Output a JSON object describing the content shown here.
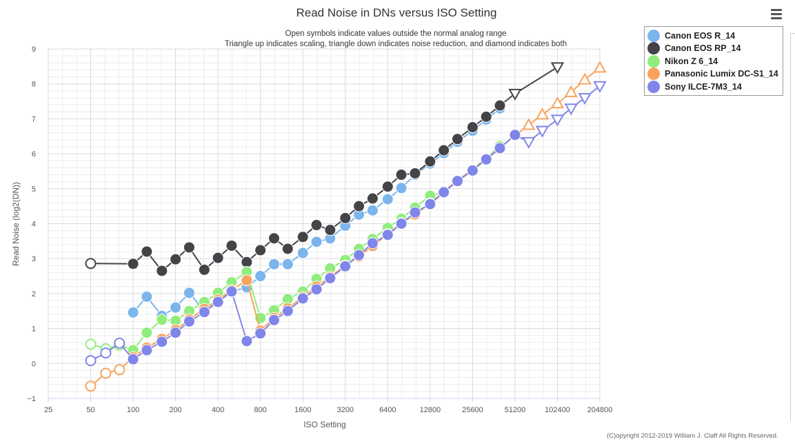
{
  "menu": {
    "icon": "hamburger-menu-icon"
  },
  "copyright": "(C)opyright 2012-2019 William J. Claff All Rights Reserved.",
  "chart_data": {
    "type": "line",
    "title": "Read Noise in DNs versus ISO Setting",
    "subtitle_lines": [
      "Open symbols indicate values outside the normal analog range",
      "Triangle up indicates scaling, triangle down indicates noise reduction, and diamond indicates both"
    ],
    "xlabel": "ISO Setting",
    "ylabel": "Read Noise (log2(DN))",
    "x_scale": "log2",
    "xlim": [
      25,
      204800
    ],
    "ylim": [
      -1,
      9
    ],
    "x_ticks": [
      25,
      50,
      100,
      200,
      400,
      800,
      1600,
      3200,
      6400,
      12800,
      25600,
      51200,
      102400,
      204800
    ],
    "y_ticks": [
      -1,
      0,
      1,
      2,
      3,
      4,
      5,
      6,
      7,
      8,
      9
    ],
    "grid": true,
    "legend_position": "top-right",
    "series": [
      {
        "name": "Canon EOS R_14",
        "color": "#7cb5ec",
        "points": [
          {
            "x": 100,
            "y": 1.46,
            "s": "circle"
          },
          {
            "x": 125,
            "y": 1.91,
            "s": "circle"
          },
          {
            "x": 160,
            "y": 1.36,
            "s": "circle"
          },
          {
            "x": 200,
            "y": 1.6,
            "s": "circle"
          },
          {
            "x": 250,
            "y": 2.02,
            "s": "circle"
          },
          {
            "x": 320,
            "y": 1.5,
            "s": "circle"
          },
          {
            "x": 400,
            "y": 1.85,
            "s": "circle"
          },
          {
            "x": 500,
            "y": 2.06,
            "s": "circle"
          },
          {
            "x": 640,
            "y": 2.18,
            "s": "circle"
          },
          {
            "x": 800,
            "y": 2.5,
            "s": "circle"
          },
          {
            "x": 1000,
            "y": 2.84,
            "s": "circle"
          },
          {
            "x": 1250,
            "y": 2.84,
            "s": "circle"
          },
          {
            "x": 1600,
            "y": 3.16,
            "s": "circle"
          },
          {
            "x": 2000,
            "y": 3.48,
            "s": "circle"
          },
          {
            "x": 2500,
            "y": 3.58,
            "s": "circle"
          },
          {
            "x": 3200,
            "y": 3.94,
            "s": "circle"
          },
          {
            "x": 4000,
            "y": 4.26,
            "s": "circle"
          },
          {
            "x": 5000,
            "y": 4.38,
            "s": "circle"
          },
          {
            "x": 6400,
            "y": 4.7,
            "s": "circle"
          },
          {
            "x": 8000,
            "y": 5.02,
            "s": "circle"
          },
          {
            "x": 10000,
            "y": 5.4,
            "s": "circle"
          },
          {
            "x": 12800,
            "y": 5.72,
            "s": "circle"
          },
          {
            "x": 16000,
            "y": 6.02,
            "s": "circle"
          },
          {
            "x": 20000,
            "y": 6.34,
            "s": "circle"
          },
          {
            "x": 25600,
            "y": 6.66,
            "s": "circle"
          },
          {
            "x": 32000,
            "y": 6.98,
            "s": "circle"
          },
          {
            "x": 40000,
            "y": 7.3,
            "s": "circle"
          }
        ]
      },
      {
        "name": "Canon EOS RP_14",
        "color": "#434348",
        "points": [
          {
            "x": 50,
            "y": 2.86,
            "s": "open-circle"
          },
          {
            "x": 100,
            "y": 2.85,
            "s": "circle"
          },
          {
            "x": 125,
            "y": 3.2,
            "s": "circle"
          },
          {
            "x": 160,
            "y": 2.65,
            "s": "circle"
          },
          {
            "x": 200,
            "y": 2.98,
            "s": "circle"
          },
          {
            "x": 250,
            "y": 3.32,
            "s": "circle"
          },
          {
            "x": 320,
            "y": 2.68,
            "s": "circle"
          },
          {
            "x": 400,
            "y": 3.02,
            "s": "circle"
          },
          {
            "x": 500,
            "y": 3.37,
            "s": "circle"
          },
          {
            "x": 640,
            "y": 2.9,
            "s": "circle"
          },
          {
            "x": 800,
            "y": 3.24,
            "s": "circle"
          },
          {
            "x": 1000,
            "y": 3.58,
            "s": "circle"
          },
          {
            "x": 1250,
            "y": 3.28,
            "s": "circle"
          },
          {
            "x": 1600,
            "y": 3.62,
            "s": "circle"
          },
          {
            "x": 2000,
            "y": 3.96,
            "s": "circle"
          },
          {
            "x": 2500,
            "y": 3.82,
            "s": "circle"
          },
          {
            "x": 3200,
            "y": 4.16,
            "s": "circle"
          },
          {
            "x": 4000,
            "y": 4.5,
            "s": "circle"
          },
          {
            "x": 5000,
            "y": 4.72,
            "s": "circle"
          },
          {
            "x": 6400,
            "y": 5.06,
            "s": "circle"
          },
          {
            "x": 8000,
            "y": 5.4,
            "s": "circle"
          },
          {
            "x": 10000,
            "y": 5.44,
            "s": "circle"
          },
          {
            "x": 12800,
            "y": 5.78,
            "s": "circle"
          },
          {
            "x": 16000,
            "y": 6.1,
            "s": "circle"
          },
          {
            "x": 20000,
            "y": 6.42,
            "s": "circle"
          },
          {
            "x": 25600,
            "y": 6.76,
            "s": "circle"
          },
          {
            "x": 32000,
            "y": 7.06,
            "s": "circle"
          },
          {
            "x": 40000,
            "y": 7.38,
            "s": "circle"
          },
          {
            "x": 51200,
            "y": 7.72,
            "s": "tri-down"
          },
          {
            "x": 102400,
            "y": 8.48,
            "s": "tri-down"
          }
        ]
      },
      {
        "name": "Nikon Z 6_14",
        "color": "#90ed7d",
        "points": [
          {
            "x": 50,
            "y": 0.55,
            "s": "open-circle"
          },
          {
            "x": 64,
            "y": 0.42,
            "s": "open-circle"
          },
          {
            "x": 80,
            "y": 0.52,
            "s": "open-circle"
          },
          {
            "x": 100,
            "y": 0.38,
            "s": "circle"
          },
          {
            "x": 125,
            "y": 0.88,
            "s": "circle"
          },
          {
            "x": 160,
            "y": 1.25,
            "s": "circle"
          },
          {
            "x": 200,
            "y": 1.22,
            "s": "circle"
          },
          {
            "x": 250,
            "y": 1.5,
            "s": "circle"
          },
          {
            "x": 320,
            "y": 1.76,
            "s": "circle"
          },
          {
            "x": 400,
            "y": 2.02,
            "s": "circle"
          },
          {
            "x": 500,
            "y": 2.32,
            "s": "circle"
          },
          {
            "x": 640,
            "y": 2.62,
            "s": "circle"
          },
          {
            "x": 800,
            "y": 1.3,
            "s": "circle"
          },
          {
            "x": 1000,
            "y": 1.52,
            "s": "circle"
          },
          {
            "x": 1250,
            "y": 1.84,
            "s": "circle"
          },
          {
            "x": 1600,
            "y": 2.06,
            "s": "circle"
          },
          {
            "x": 2000,
            "y": 2.42,
            "s": "circle"
          },
          {
            "x": 2500,
            "y": 2.72,
            "s": "circle"
          },
          {
            "x": 3200,
            "y": 2.96,
            "s": "circle"
          },
          {
            "x": 4000,
            "y": 3.28,
            "s": "circle"
          },
          {
            "x": 5000,
            "y": 3.56,
            "s": "circle"
          },
          {
            "x": 6400,
            "y": 3.88,
            "s": "circle"
          },
          {
            "x": 8000,
            "y": 4.14,
            "s": "circle"
          },
          {
            "x": 10000,
            "y": 4.46,
            "s": "circle"
          },
          {
            "x": 12800,
            "y": 4.8,
            "s": "circle"
          },
          {
            "x": 16000,
            "y": 4.9,
            "s": "circle"
          },
          {
            "x": 20000,
            "y": 5.22,
            "s": "circle"
          },
          {
            "x": 25600,
            "y": 5.56,
            "s": "circle"
          },
          {
            "x": 32000,
            "y": 5.88,
            "s": "circle"
          },
          {
            "x": 40000,
            "y": 6.22,
            "s": "circle"
          }
        ]
      },
      {
        "name": "Panasonic Lumix DC-S1_14",
        "color": "#f7a35c",
        "points": [
          {
            "x": 50,
            "y": -0.65,
            "s": "open-circle"
          },
          {
            "x": 64,
            "y": -0.28,
            "s": "open-circle"
          },
          {
            "x": 80,
            "y": -0.18,
            "s": "open-circle"
          },
          {
            "x": 100,
            "y": 0.18,
            "s": "circle"
          },
          {
            "x": 125,
            "y": 0.45,
            "s": "circle"
          },
          {
            "x": 160,
            "y": 0.7,
            "s": "circle"
          },
          {
            "x": 200,
            "y": 0.96,
            "s": "circle"
          },
          {
            "x": 250,
            "y": 1.26,
            "s": "circle"
          },
          {
            "x": 320,
            "y": 1.56,
            "s": "circle"
          },
          {
            "x": 400,
            "y": 1.82,
            "s": "circle"
          },
          {
            "x": 500,
            "y": 2.1,
            "s": "circle"
          },
          {
            "x": 640,
            "y": 2.38,
            "s": "circle"
          },
          {
            "x": 800,
            "y": 0.94,
            "s": "circle"
          },
          {
            "x": 1000,
            "y": 1.3,
            "s": "circle"
          },
          {
            "x": 1250,
            "y": 1.58,
            "s": "circle"
          },
          {
            "x": 1600,
            "y": 1.9,
            "s": "circle"
          },
          {
            "x": 2000,
            "y": 2.2,
            "s": "circle"
          },
          {
            "x": 2500,
            "y": 2.48,
            "s": "circle"
          },
          {
            "x": 3200,
            "y": 2.8,
            "s": "circle"
          },
          {
            "x": 4000,
            "y": 3.06,
            "s": "circle"
          },
          {
            "x": 5000,
            "y": 3.36,
            "s": "circle"
          },
          {
            "x": 6400,
            "y": 3.7,
            "s": "circle"
          },
          {
            "x": 8000,
            "y": 4.02,
            "s": "circle"
          },
          {
            "x": 10000,
            "y": 4.26,
            "s": "circle"
          },
          {
            "x": 12800,
            "y": 4.58,
            "s": "circle"
          },
          {
            "x": 16000,
            "y": 4.92,
            "s": "circle"
          },
          {
            "x": 20000,
            "y": 5.24,
            "s": "circle"
          },
          {
            "x": 25600,
            "y": 5.54,
            "s": "circle"
          },
          {
            "x": 32000,
            "y": 5.86,
            "s": "circle"
          },
          {
            "x": 40000,
            "y": 6.16,
            "s": "circle"
          },
          {
            "x": 51200,
            "y": 6.52,
            "s": "circle"
          },
          {
            "x": 64000,
            "y": 6.82,
            "s": "tri-up"
          },
          {
            "x": 80000,
            "y": 7.12,
            "s": "tri-up"
          },
          {
            "x": 102400,
            "y": 7.44,
            "s": "tri-up"
          },
          {
            "x": 128000,
            "y": 7.76,
            "s": "tri-up"
          },
          {
            "x": 160000,
            "y": 8.12,
            "s": "tri-up"
          },
          {
            "x": 204800,
            "y": 8.46,
            "s": "tri-up"
          }
        ]
      },
      {
        "name": "Sony ILCE-7M3_14",
        "color": "#8085e9",
        "points": [
          {
            "x": 50,
            "y": 0.08,
            "s": "open-circle"
          },
          {
            "x": 64,
            "y": 0.3,
            "s": "open-circle"
          },
          {
            "x": 80,
            "y": 0.58,
            "s": "open-circle"
          },
          {
            "x": 100,
            "y": 0.12,
            "s": "circle"
          },
          {
            "x": 125,
            "y": 0.38,
            "s": "circle"
          },
          {
            "x": 160,
            "y": 0.62,
            "s": "circle"
          },
          {
            "x": 200,
            "y": 0.88,
            "s": "circle"
          },
          {
            "x": 250,
            "y": 1.2,
            "s": "circle"
          },
          {
            "x": 320,
            "y": 1.47,
            "s": "circle"
          },
          {
            "x": 400,
            "y": 1.76,
            "s": "circle"
          },
          {
            "x": 500,
            "y": 2.06,
            "s": "circle"
          },
          {
            "x": 640,
            "y": 0.64,
            "s": "circle"
          },
          {
            "x": 800,
            "y": 0.86,
            "s": "circle"
          },
          {
            "x": 1000,
            "y": 1.24,
            "s": "circle"
          },
          {
            "x": 1250,
            "y": 1.5,
            "s": "circle"
          },
          {
            "x": 1600,
            "y": 1.86,
            "s": "circle"
          },
          {
            "x": 2000,
            "y": 2.12,
            "s": "circle"
          },
          {
            "x": 2500,
            "y": 2.44,
            "s": "circle"
          },
          {
            "x": 3200,
            "y": 2.78,
            "s": "circle"
          },
          {
            "x": 4000,
            "y": 3.1,
            "s": "circle"
          },
          {
            "x": 5000,
            "y": 3.44,
            "s": "circle"
          },
          {
            "x": 6400,
            "y": 3.68,
            "s": "circle"
          },
          {
            "x": 8000,
            "y": 4.0,
            "s": "circle"
          },
          {
            "x": 10000,
            "y": 4.32,
            "s": "circle"
          },
          {
            "x": 12800,
            "y": 4.56,
            "s": "circle"
          },
          {
            "x": 16000,
            "y": 4.9,
            "s": "circle"
          },
          {
            "x": 20000,
            "y": 5.22,
            "s": "circle"
          },
          {
            "x": 25600,
            "y": 5.52,
            "s": "circle"
          },
          {
            "x": 32000,
            "y": 5.84,
            "s": "circle"
          },
          {
            "x": 40000,
            "y": 6.16,
            "s": "circle"
          },
          {
            "x": 51200,
            "y": 6.54,
            "s": "circle"
          },
          {
            "x": 64000,
            "y": 6.34,
            "s": "tri-down"
          },
          {
            "x": 80000,
            "y": 6.66,
            "s": "tri-down"
          },
          {
            "x": 102400,
            "y": 6.98,
            "s": "tri-down"
          },
          {
            "x": 128000,
            "y": 7.3,
            "s": "tri-down"
          },
          {
            "x": 160000,
            "y": 7.6,
            "s": "tri-down"
          },
          {
            "x": 204800,
            "y": 7.94,
            "s": "tri-down"
          }
        ]
      }
    ]
  }
}
